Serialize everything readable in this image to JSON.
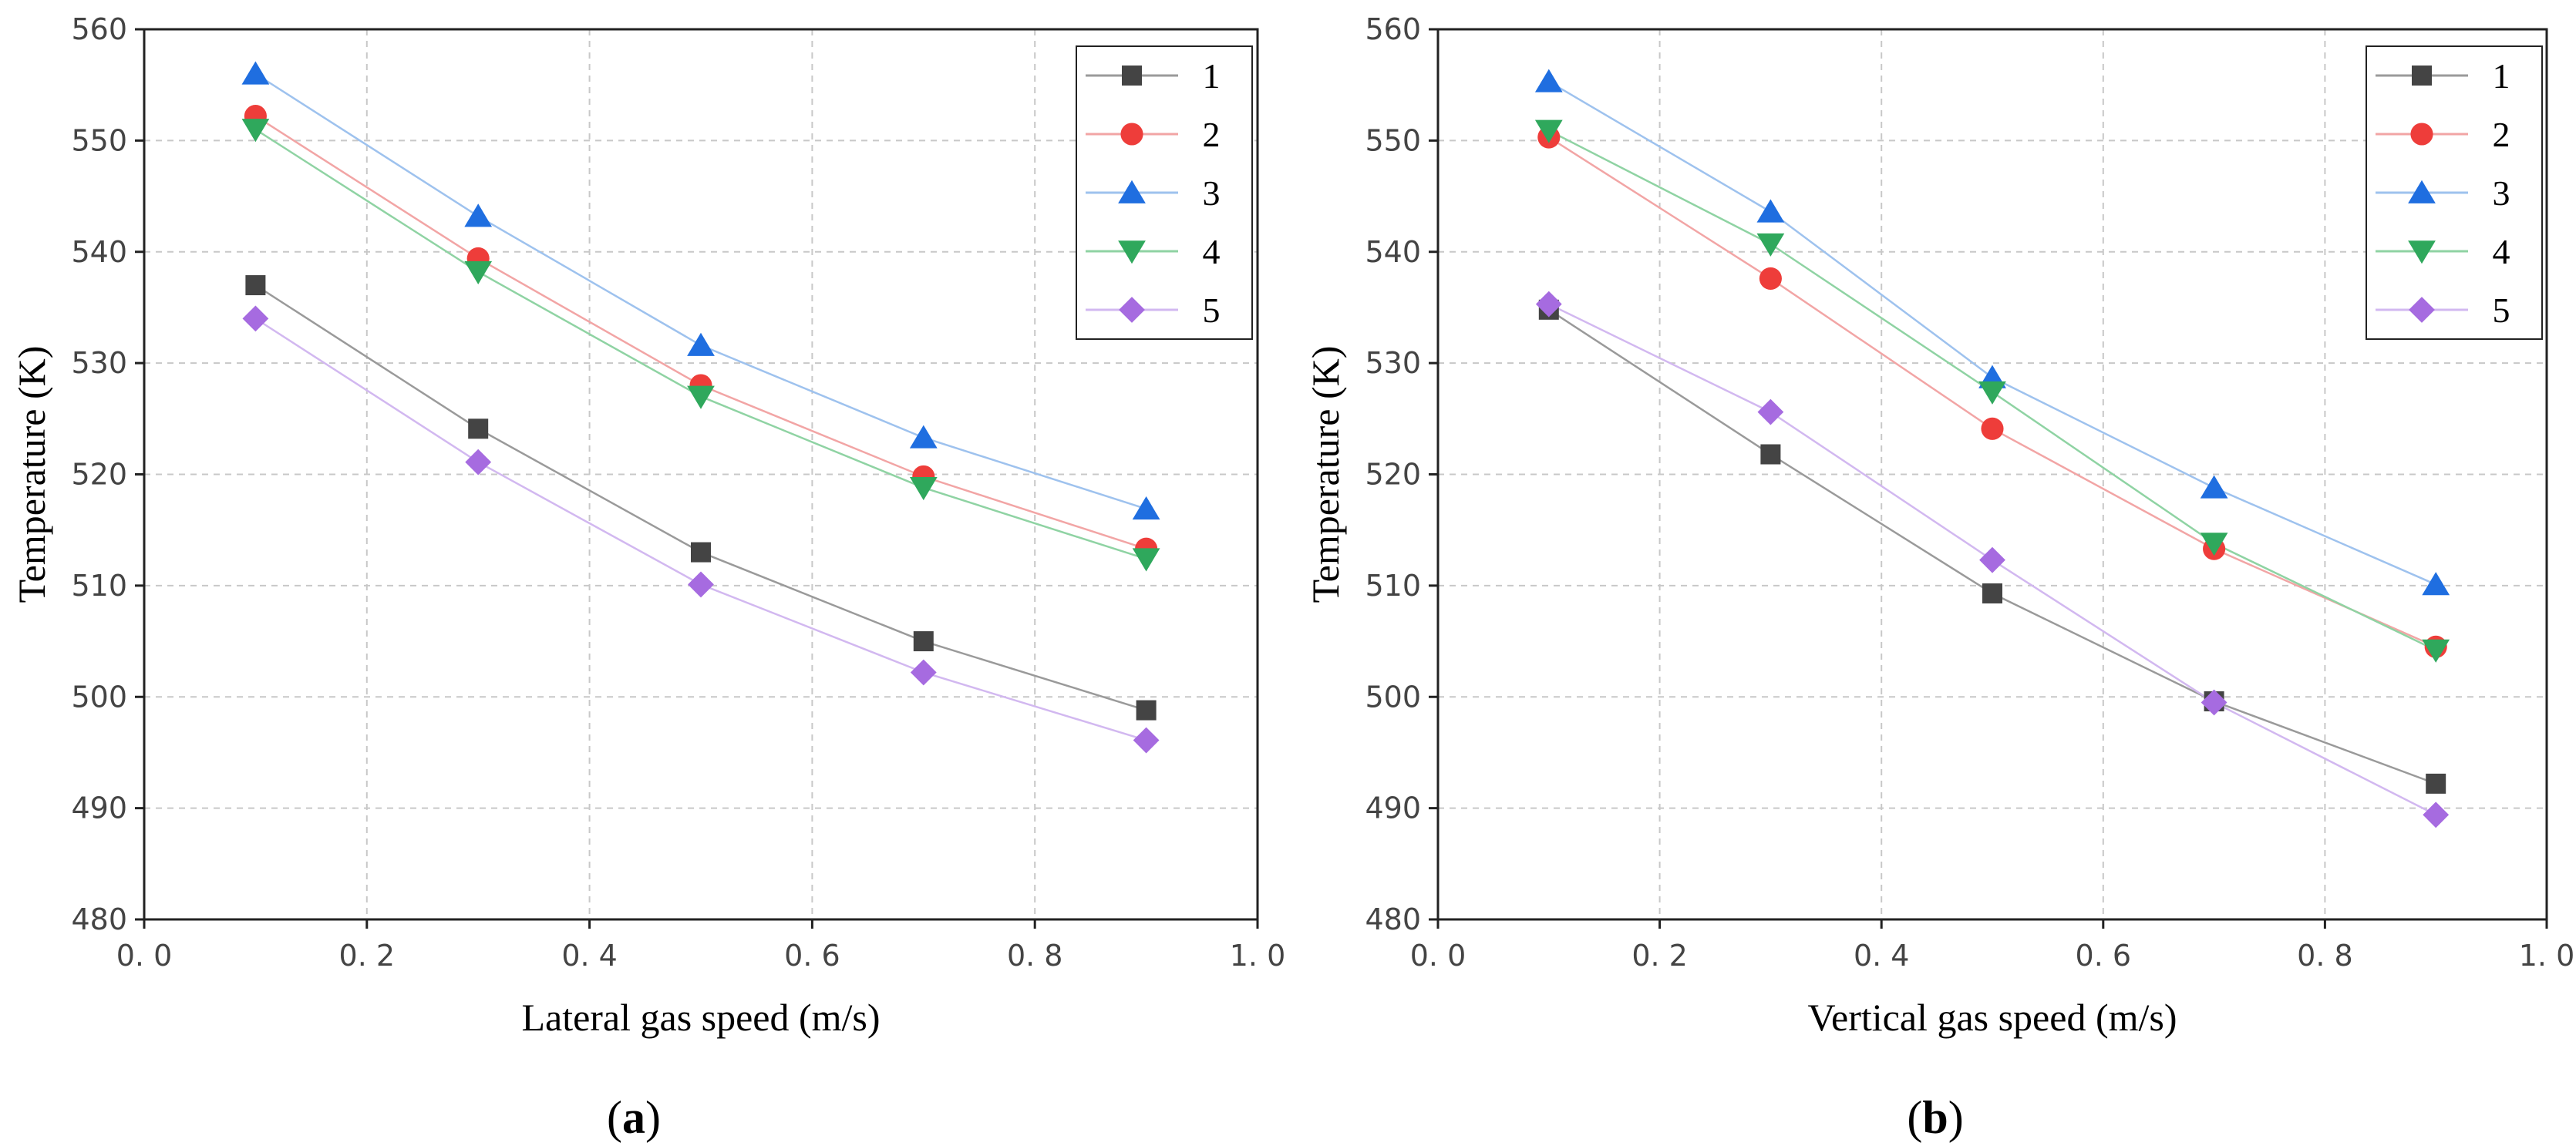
{
  "colors": {
    "series_1": "#444444",
    "series_2": "#ee3d3a",
    "series_3": "#1f6ee0",
    "series_4": "#2fa85c",
    "series_5": "#a66be0",
    "line_1": "#9a9a9a",
    "line_2": "#f2a5a5",
    "line_3": "#9ec2ee",
    "line_4": "#8fd3a3",
    "line_5": "#d2b8f0"
  },
  "chart_data": [
    {
      "type": "line",
      "panel": "a",
      "panel_label_open": "(",
      "panel_label_letter": "a",
      "panel_label_close": ")",
      "title": "",
      "xlabel": "Lateral gas speed (m/s)",
      "ylabel": "Temperature (K)",
      "xlim": [
        0.0,
        1.0
      ],
      "ylim": [
        480,
        560
      ],
      "xticks": [
        0.0,
        0.2,
        0.4,
        0.6,
        0.8,
        1.0
      ],
      "xtick_labels": [
        "0. 0",
        "0. 2",
        "0. 4",
        "0. 6",
        "0. 8",
        "1. 0"
      ],
      "yticks": [
        480,
        490,
        500,
        510,
        520,
        530,
        540,
        550,
        560
      ],
      "ytick_labels": [
        "480",
        "490",
        "500",
        "510",
        "520",
        "530",
        "540",
        "550",
        "560"
      ],
      "grid": true,
      "legend_position": "top-right",
      "x": [
        0.1,
        0.3,
        0.5,
        0.7,
        0.9
      ],
      "series": [
        {
          "name": "1",
          "marker": "square",
          "values": [
            537.0,
            524.1,
            513.0,
            505.0,
            498.8
          ]
        },
        {
          "name": "2",
          "marker": "circle",
          "values": [
            552.2,
            539.4,
            528.0,
            519.8,
            513.3
          ]
        },
        {
          "name": "3",
          "marker": "triangle-up",
          "values": [
            556.0,
            543.2,
            531.6,
            523.3,
            516.9
          ]
        },
        {
          "name": "4",
          "marker": "triangle-down",
          "values": [
            551.0,
            538.2,
            527.0,
            518.8,
            512.4
          ]
        },
        {
          "name": "5",
          "marker": "diamond",
          "values": [
            534.0,
            521.1,
            510.1,
            502.2,
            496.1
          ]
        }
      ]
    },
    {
      "type": "line",
      "panel": "b",
      "panel_label_open": "(",
      "panel_label_letter": "b",
      "panel_label_close": ")",
      "title": "",
      "xlabel": "Vertical gas speed (m/s)",
      "ylabel": "Temperature (K)",
      "xlim": [
        0.0,
        1.0
      ],
      "ylim": [
        480,
        560
      ],
      "xticks": [
        0.0,
        0.2,
        0.4,
        0.6,
        0.8,
        1.0
      ],
      "xtick_labels": [
        "0. 0",
        "0. 2",
        "0. 4",
        "0. 6",
        "0. 8",
        "1. 0"
      ],
      "yticks": [
        480,
        490,
        500,
        510,
        520,
        530,
        540,
        550,
        560
      ],
      "ytick_labels": [
        "480",
        "490",
        "500",
        "510",
        "520",
        "530",
        "540",
        "550",
        "560"
      ],
      "grid": true,
      "legend_position": "top-right",
      "x": [
        0.1,
        0.3,
        0.5,
        0.7,
        0.9
      ],
      "series": [
        {
          "name": "1",
          "marker": "square",
          "values": [
            534.8,
            521.8,
            509.3,
            499.6,
            492.2
          ]
        },
        {
          "name": "2",
          "marker": "circle",
          "values": [
            550.3,
            537.6,
            524.1,
            513.3,
            504.5
          ]
        },
        {
          "name": "3",
          "marker": "triangle-up",
          "values": [
            555.3,
            543.6,
            528.7,
            518.8,
            510.1
          ]
        },
        {
          "name": "4",
          "marker": "triangle-down",
          "values": [
            550.9,
            540.7,
            527.4,
            513.8,
            504.2
          ]
        },
        {
          "name": "5",
          "marker": "diamond",
          "values": [
            535.3,
            525.6,
            512.3,
            499.5,
            489.4
          ]
        }
      ]
    }
  ]
}
